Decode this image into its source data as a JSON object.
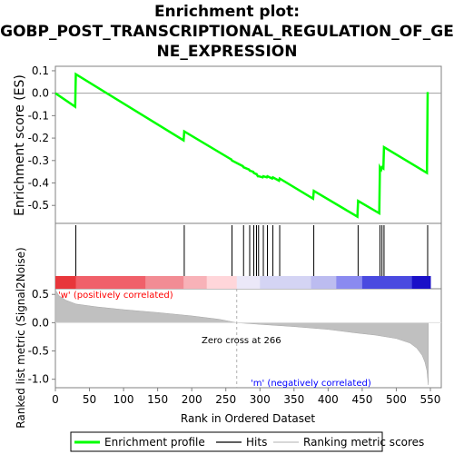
{
  "title_lines": [
    "Enrichment plot:",
    "GOBP_POST_TRANSCRIPTIONAL_REGULATION_OF_GE",
    "NE_EXPRESSION"
  ],
  "colors": {
    "es_line": "#00ff00",
    "hits": "#000000",
    "metric_fill": "#c0c0c0",
    "pos_label": "#ff0000",
    "neg_label": "#0000ff",
    "zero_line": "#a0a0a0"
  },
  "chart_data": [
    {
      "type": "line",
      "name": "enrichment-profile",
      "ylabel": "Enrichment score (ES)",
      "xlim": [
        0,
        566
      ],
      "ylim": [
        -0.58,
        0.12
      ],
      "yticks": [
        0.1,
        0.0,
        -0.1,
        -0.2,
        -0.3,
        -0.4,
        -0.5
      ],
      "ytick_labels": [
        "0.1",
        "0.0",
        "-0.1",
        "-0.2",
        "-0.3",
        "-0.4",
        "-0.5"
      ],
      "x": [
        0,
        29,
        30,
        188,
        189,
        258,
        259,
        275,
        276,
        284,
        285,
        290,
        291,
        294,
        295,
        297,
        298,
        304,
        305,
        310,
        311,
        318,
        319,
        328,
        329,
        378,
        379,
        443,
        444,
        475,
        476,
        478,
        479,
        481,
        482,
        545,
        546
      ],
      "y": [
        0.0,
        -0.06,
        0.085,
        -0.21,
        -0.17,
        -0.295,
        -0.3,
        -0.325,
        -0.33,
        -0.34,
        -0.345,
        -0.35,
        -0.355,
        -0.36,
        -0.36,
        -0.37,
        -0.37,
        -0.375,
        -0.37,
        -0.375,
        -0.37,
        -0.38,
        -0.375,
        -0.39,
        -0.38,
        -0.47,
        -0.435,
        -0.55,
        -0.48,
        -0.535,
        -0.33,
        -0.34,
        -0.33,
        -0.335,
        -0.24,
        -0.355,
        0.005
      ]
    },
    {
      "type": "scatter",
      "name": "hits",
      "x": [
        30,
        189,
        259,
        276,
        285,
        291,
        295,
        298,
        305,
        311,
        319,
        329,
        379,
        444,
        476,
        479,
        482,
        546
      ]
    },
    {
      "type": "area",
      "name": "ranked-list-metric",
      "ylabel": "Ranked list metric (Signal2Noise)",
      "xlabel": "Rank in Ordered Dataset",
      "xlim": [
        0,
        566
      ],
      "ylim": [
        -1.15,
        0.6
      ],
      "xticks": [
        0,
        50,
        100,
        150,
        200,
        250,
        300,
        350,
        400,
        450,
        500,
        550
      ],
      "xtick_labels": [
        "0",
        "50",
        "100",
        "150",
        "200",
        "250",
        "300",
        "350",
        "400",
        "450",
        "500",
        "550"
      ],
      "yticks": [
        0.5,
        0.0,
        -0.5,
        -1.0
      ],
      "ytick_labels": [
        "0.5",
        "0.0",
        "-0.5",
        "-1.0"
      ],
      "x": [
        0,
        5,
        15,
        30,
        60,
        100,
        150,
        200,
        240,
        266,
        300,
        350,
        400,
        440,
        470,
        500,
        520,
        530,
        538,
        542,
        545,
        547
      ],
      "y": [
        0.58,
        0.48,
        0.4,
        0.33,
        0.28,
        0.23,
        0.18,
        0.12,
        0.06,
        0.0,
        -0.03,
        -0.07,
        -0.12,
        -0.18,
        -0.22,
        -0.28,
        -0.36,
        -0.45,
        -0.58,
        -0.7,
        -0.85,
        -1.1
      ],
      "zero_cross_label": "Zero cross at 266",
      "zero_cross_x": 266,
      "pos_label": "'w' (positively correlated)",
      "neg_label": "'m' (negatively correlated)"
    }
  ],
  "legend": {
    "position": "bottom",
    "items": [
      {
        "label": "Enrichment profile",
        "color": "#00ff00",
        "style": "line"
      },
      {
        "label": "Hits",
        "color": "#606060",
        "style": "line"
      },
      {
        "label": "Ranking metric scores",
        "color": "#c0c0c0",
        "style": "line"
      }
    ]
  }
}
